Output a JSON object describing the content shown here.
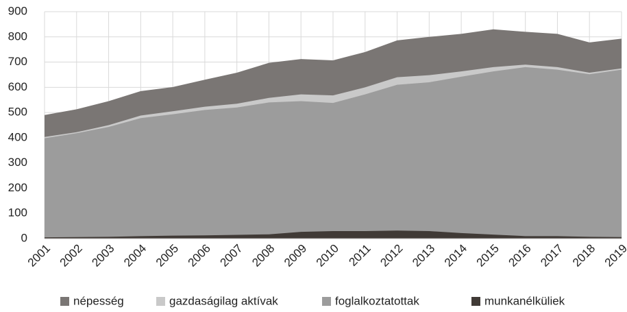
{
  "chart_data": {
    "type": "area",
    "categories": [
      "2001",
      "2002",
      "2003",
      "2004",
      "2005",
      "2006",
      "2007",
      "2008",
      "2009",
      "2010",
      "2011",
      "2012",
      "2013",
      "2014",
      "2015",
      "2016",
      "2017",
      "2018",
      "2019"
    ],
    "series": [
      {
        "name": "népesség",
        "color": "#7a7674",
        "values": [
          490,
          513,
          545,
          585,
          601,
          630,
          658,
          697,
          712,
          707,
          740,
          786,
          800,
          812,
          830,
          820,
          812,
          778,
          793
        ]
      },
      {
        "name": "gazdaságilag aktívak",
        "color": "#c9c9c9",
        "values": [
          403,
          422,
          450,
          488,
          505,
          523,
          535,
          558,
          572,
          568,
          600,
          640,
          648,
          663,
          680,
          690,
          680,
          658,
          675
        ]
      },
      {
        "name": "foglalkoztatottak",
        "color": "#9c9c9c",
        "values": [
          398,
          418,
          443,
          478,
          493,
          510,
          520,
          540,
          545,
          538,
          572,
          610,
          620,
          642,
          663,
          680,
          670,
          652,
          670
        ]
      },
      {
        "name": "munkanélküliek",
        "color": "#403a36",
        "values": [
          5,
          6,
          7,
          10,
          12,
          13,
          15,
          17,
          27,
          30,
          30,
          32,
          30,
          22,
          16,
          10,
          10,
          7,
          6
        ]
      }
    ],
    "ylim": [
      0,
      900
    ],
    "yticks": [
      0,
      100,
      200,
      300,
      400,
      500,
      600,
      700,
      800,
      900
    ],
    "grid": true,
    "legend": "bottom"
  }
}
